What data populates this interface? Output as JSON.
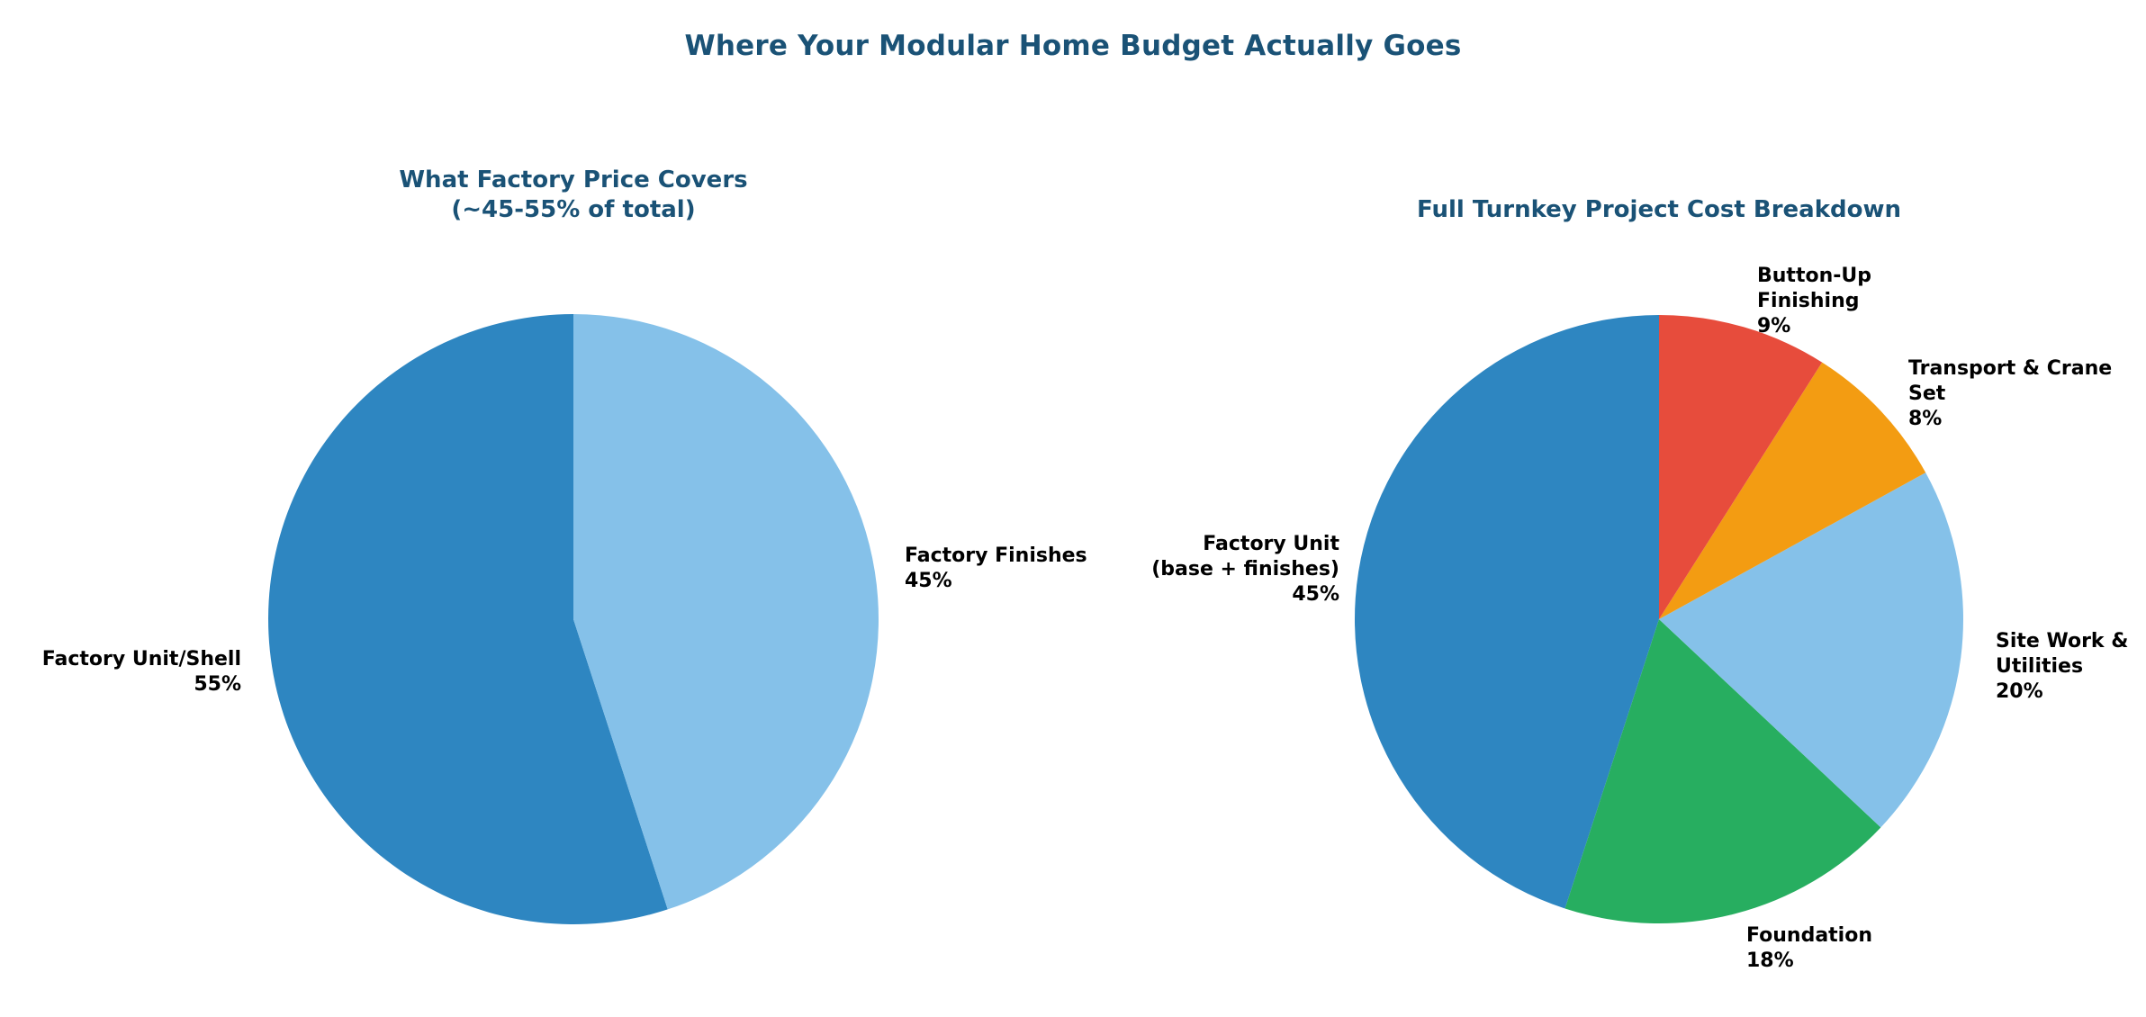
{
  "main_title": "Where Your Modular Home Budget Actually Goes",
  "colors": {
    "title": "#1A5276",
    "label_text": "#000000",
    "background": "#ffffff"
  },
  "charts": [
    {
      "title_lines": [
        "What Factory Price Covers",
        "(~45-55% of total)"
      ],
      "annotations": [
        {
          "lines": [
            "Factory Unit/Shell",
            "55%"
          ]
        },
        {
          "lines": [
            "Factory Finishes",
            "45%"
          ]
        }
      ]
    },
    {
      "title_lines": [
        "Full Turnkey Project Cost Breakdown"
      ],
      "annotations": [
        {
          "lines": [
            "Factory Unit",
            "(base + finishes)",
            "45%"
          ]
        },
        {
          "lines": [
            "Button-Up",
            "Finishing",
            "9%"
          ]
        },
        {
          "lines": [
            "Transport & Crane",
            "Set",
            "8%"
          ]
        },
        {
          "lines": [
            "Site Work &",
            "Utilities",
            "20%"
          ]
        },
        {
          "lines": [
            "Foundation",
            "18%"
          ]
        }
      ]
    }
  ],
  "chart_data": [
    {
      "type": "pie",
      "title": "What Factory Price Covers (~45-55% of total)",
      "labels": [
        "Factory Unit/Shell",
        "Factory Finishes"
      ],
      "values": [
        55,
        45
      ],
      "unit": "%",
      "colors": [
        "#2E86C1",
        "#85C1E9"
      ],
      "start_angle_deg": 90,
      "direction": "counterclockwise",
      "legend": "none",
      "label_position": "outside"
    },
    {
      "type": "pie",
      "title": "Full Turnkey Project Cost Breakdown",
      "labels": [
        "Factory Unit (base + finishes)",
        "Foundation",
        "Site Work & Utilities",
        "Transport & Crane Set",
        "Button-Up Finishing"
      ],
      "values": [
        45,
        18,
        20,
        8,
        9
      ],
      "unit": "%",
      "colors": [
        "#2E86C1",
        "#27AE60",
        "#85C1E9",
        "#F39C12",
        "#E74C3C"
      ],
      "start_angle_deg": 90,
      "direction": "counterclockwise",
      "legend": "none",
      "label_position": "outside"
    }
  ]
}
